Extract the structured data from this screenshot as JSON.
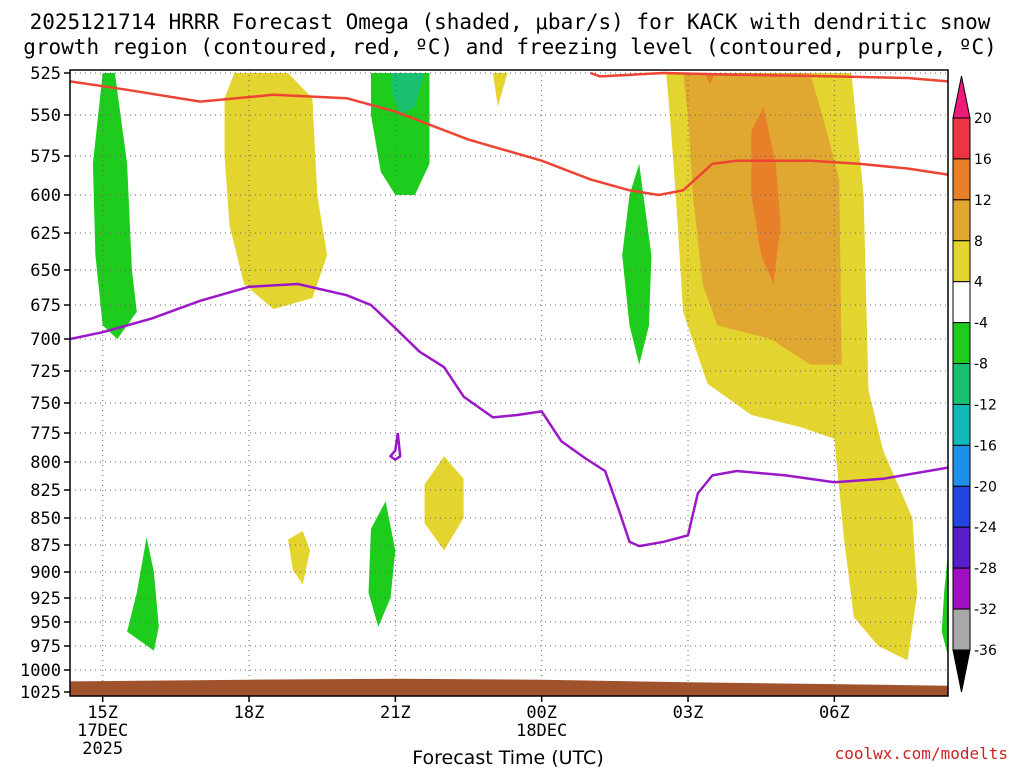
{
  "chart_data": {
    "type": "contour",
    "title_lines": [
      "2025121714 HRRR Forecast Omega (shaded, μbar/s) for KACK with dendritic snow",
      "growth region (contoured, red, ºC) and freezing level (contoured, purple, ºC)"
    ],
    "xlabel": "Forecast Time (UTC)",
    "credit": "coolwx.com/modelts",
    "xlim": [
      14.33,
      32.33
    ],
    "x_ticks": [
      {
        "x": 15,
        "lines": [
          "15Z",
          "17DEC",
          "2025"
        ]
      },
      {
        "x": 18,
        "lines": [
          "18Z"
        ]
      },
      {
        "x": 21,
        "lines": [
          "21Z"
        ]
      },
      {
        "x": 24,
        "lines": [
          "00Z",
          "18DEC"
        ]
      },
      {
        "x": 27,
        "lines": [
          "03Z"
        ]
      },
      {
        "x": 30,
        "lines": [
          "06Z"
        ]
      }
    ],
    "y_ticks": [
      525,
      550,
      575,
      600,
      625,
      650,
      675,
      700,
      725,
      750,
      775,
      800,
      825,
      850,
      875,
      900,
      925,
      950,
      975,
      1000,
      1025
    ],
    "colorbar": {
      "labels": [
        "20",
        "16",
        "12",
        "8",
        "4",
        "-4",
        "-8",
        "-12",
        "-16",
        "-20",
        "-24",
        "-28",
        "-32",
        "-36"
      ],
      "colors": [
        "#ee3344",
        "#e8802a",
        "#e0a830",
        "#e4d430",
        "#ffffff",
        "#1ecc1e",
        "#18c070",
        "#10b8b8",
        "#1e90e8",
        "#2244e0",
        "#5a1ec8",
        "#a010c0",
        "#a8a8a8"
      ],
      "top_color": "#ee1a7a",
      "bottom_color": "#000000"
    },
    "omega_regions": [
      {
        "level": "4 to 8",
        "color": "#e4d430",
        "points": [
          [
            17.7,
            525
          ],
          [
            18.8,
            525
          ],
          [
            19.3,
            540
          ],
          [
            19.4,
            600
          ],
          [
            19.6,
            640
          ],
          [
            19.3,
            670
          ],
          [
            18.5,
            678
          ],
          [
            17.9,
            660
          ],
          [
            17.6,
            620
          ],
          [
            17.5,
            575
          ],
          [
            17.5,
            540
          ]
        ]
      },
      {
        "level": "4 to 8",
        "color": "#e4d430",
        "points": [
          [
            23.0,
            525
          ],
          [
            23.3,
            525
          ],
          [
            23.2,
            535
          ],
          [
            23.1,
            545
          ]
        ]
      },
      {
        "level": "4 to 8",
        "color": "#e4d430",
        "points": [
          [
            26.55,
            525
          ],
          [
            30.35,
            525
          ],
          [
            30.6,
            600
          ],
          [
            30.7,
            740
          ],
          [
            31.0,
            790
          ],
          [
            31.6,
            850
          ],
          [
            31.7,
            920
          ],
          [
            31.5,
            990
          ],
          [
            30.9,
            975
          ],
          [
            30.4,
            945
          ],
          [
            30.2,
            870
          ],
          [
            30.0,
            780
          ],
          [
            29.3,
            770
          ],
          [
            28.3,
            760
          ],
          [
            27.4,
            735
          ],
          [
            26.9,
            680
          ],
          [
            26.75,
            600
          ],
          [
            26.6,
            540
          ]
        ]
      },
      {
        "level": "4 to 8",
        "color": "#e4d430",
        "points": [
          [
            22.0,
            795
          ],
          [
            22.4,
            815
          ],
          [
            22.4,
            850
          ],
          [
            22.0,
            880
          ],
          [
            21.6,
            855
          ],
          [
            21.6,
            820
          ]
        ]
      },
      {
        "level": "4 to 8",
        "color": "#e4d430",
        "points": [
          [
            19.1,
            862
          ],
          [
            19.25,
            880
          ],
          [
            19.1,
            912
          ],
          [
            18.9,
            898
          ],
          [
            18.8,
            870
          ]
        ]
      },
      {
        "level": "8 to 12",
        "color": "#e0a830",
        "points": [
          [
            26.9,
            525
          ],
          [
            29.5,
            525
          ],
          [
            29.8,
            555
          ],
          [
            30.1,
            590
          ],
          [
            30.15,
            720
          ],
          [
            29.5,
            720
          ],
          [
            28.7,
            700
          ],
          [
            27.6,
            690
          ],
          [
            27.3,
            660
          ],
          [
            27.1,
            600
          ],
          [
            27.0,
            550
          ]
        ]
      },
      {
        "level": "12 to 16",
        "color": "#e8802a",
        "points": [
          [
            28.55,
            545
          ],
          [
            28.8,
            580
          ],
          [
            28.9,
            620
          ],
          [
            28.75,
            660
          ],
          [
            28.5,
            640
          ],
          [
            28.3,
            600
          ],
          [
            28.3,
            560
          ]
        ]
      },
      {
        "level": "12 to 16",
        "color": "#e8802a",
        "points": [
          [
            27.35,
            525
          ],
          [
            27.55,
            525
          ],
          [
            27.45,
            532
          ]
        ]
      },
      {
        "level": "-8 to -4",
        "color": "#1ecc1e",
        "points": [
          [
            15.0,
            525
          ],
          [
            15.25,
            525
          ],
          [
            15.5,
            580
          ],
          [
            15.6,
            650
          ],
          [
            15.7,
            680
          ],
          [
            15.3,
            700
          ],
          [
            15.0,
            690
          ],
          [
            14.85,
            640
          ],
          [
            14.8,
            580
          ]
        ]
      },
      {
        "level": "-8 to -4",
        "color": "#1ecc1e",
        "points": [
          [
            20.5,
            525
          ],
          [
            21.7,
            525
          ],
          [
            21.7,
            540
          ],
          [
            21.7,
            580
          ],
          [
            21.4,
            600
          ],
          [
            21.0,
            600
          ],
          [
            20.7,
            585
          ],
          [
            20.5,
            550
          ]
        ]
      },
      {
        "level": "-8 to -4",
        "color": "#1ecc1e",
        "points": [
          [
            26.0,
            580
          ],
          [
            26.25,
            640
          ],
          [
            26.2,
            690
          ],
          [
            26.0,
            720
          ],
          [
            25.8,
            690
          ],
          [
            25.65,
            640
          ],
          [
            25.8,
            600
          ]
        ]
      },
      {
        "level": "-8 to -4",
        "color": "#1ecc1e",
        "points": [
          [
            15.9,
            868
          ],
          [
            16.05,
            900
          ],
          [
            16.15,
            955
          ],
          [
            16.05,
            980
          ],
          [
            15.5,
            960
          ],
          [
            15.7,
            920
          ]
        ]
      },
      {
        "level": "-8 to -4",
        "color": "#1ecc1e",
        "points": [
          [
            20.8,
            835
          ],
          [
            21.0,
            880
          ],
          [
            20.9,
            925
          ],
          [
            20.65,
            955
          ],
          [
            20.45,
            920
          ],
          [
            20.5,
            860
          ]
        ]
      },
      {
        "level": "-8 to -4",
        "color": "#1ecc1e",
        "points": [
          [
            32.33,
            882
          ],
          [
            32.33,
            985
          ],
          [
            32.2,
            960
          ],
          [
            32.25,
            920
          ]
        ]
      },
      {
        "level": "-12 to -8",
        "color": "#18c070",
        "points": [
          [
            20.9,
            525
          ],
          [
            21.6,
            525
          ],
          [
            21.4,
            545
          ],
          [
            21.1,
            550
          ],
          [
            20.95,
            538
          ]
        ]
      }
    ],
    "dgz_lines": [
      {
        "name": "dendritic growth boundary",
        "color": "#ee4433",
        "points": [
          [
            14.33,
            530
          ],
          [
            15.5,
            535
          ],
          [
            17.0,
            542
          ],
          [
            18.5,
            538
          ],
          [
            20.0,
            540
          ],
          [
            21.0,
            548
          ],
          [
            22.5,
            565
          ],
          [
            24.0,
            578
          ],
          [
            25.0,
            590
          ],
          [
            25.8,
            597
          ],
          [
            26.4,
            600
          ],
          [
            26.9,
            597
          ],
          [
            27.5,
            580
          ],
          [
            28.0,
            578
          ],
          [
            29.5,
            578
          ],
          [
            30.5,
            580
          ],
          [
            31.5,
            583
          ],
          [
            32.33,
            587
          ]
        ]
      },
      {
        "name": "dendritic growth boundary top",
        "color": "#ee4433",
        "points": [
          [
            25.0,
            525
          ],
          [
            25.2,
            527
          ],
          [
            26.5,
            525
          ],
          [
            28.0,
            526
          ],
          [
            30.0,
            527
          ],
          [
            31.5,
            528
          ],
          [
            32.33,
            530
          ]
        ]
      }
    ],
    "freezing_lines": [
      {
        "name": "freezing level",
        "color": "#9b18c8",
        "points": [
          [
            14.33,
            700
          ],
          [
            15.0,
            695
          ],
          [
            16.0,
            685
          ],
          [
            17.0,
            672
          ],
          [
            18.0,
            662
          ],
          [
            19.0,
            660
          ],
          [
            20.0,
            668
          ],
          [
            20.5,
            675
          ],
          [
            21.0,
            692
          ],
          [
            21.5,
            710
          ],
          [
            22.0,
            722
          ],
          [
            22.4,
            745
          ],
          [
            23.0,
            762
          ],
          [
            23.5,
            760
          ],
          [
            24.0,
            757
          ],
          [
            24.4,
            782
          ],
          [
            24.9,
            797
          ],
          [
            25.3,
            808
          ],
          [
            25.6,
            845
          ],
          [
            25.8,
            872
          ],
          [
            26.0,
            876
          ],
          [
            26.5,
            872
          ],
          [
            27.0,
            866
          ],
          [
            27.2,
            828
          ],
          [
            27.5,
            812
          ],
          [
            28.0,
            808
          ],
          [
            29.0,
            812
          ],
          [
            30.0,
            818
          ],
          [
            31.0,
            815
          ],
          [
            32.33,
            805
          ]
        ]
      },
      {
        "name": "freezing level loop",
        "color": "#9b18c8",
        "points": [
          [
            21.05,
            775
          ],
          [
            21.1,
            795
          ],
          [
            21.0,
            798
          ],
          [
            20.9,
            795
          ],
          [
            21.0,
            790
          ],
          [
            21.05,
            775
          ]
        ]
      }
    ],
    "terrain": {
      "color": "#a0522d",
      "points": [
        [
          14.33,
          1013
        ],
        [
          18.0,
          1011
        ],
        [
          21.0,
          1010
        ],
        [
          24.0,
          1011
        ],
        [
          27.0,
          1014
        ],
        [
          30.0,
          1016
        ],
        [
          32.33,
          1018
        ]
      ]
    }
  }
}
